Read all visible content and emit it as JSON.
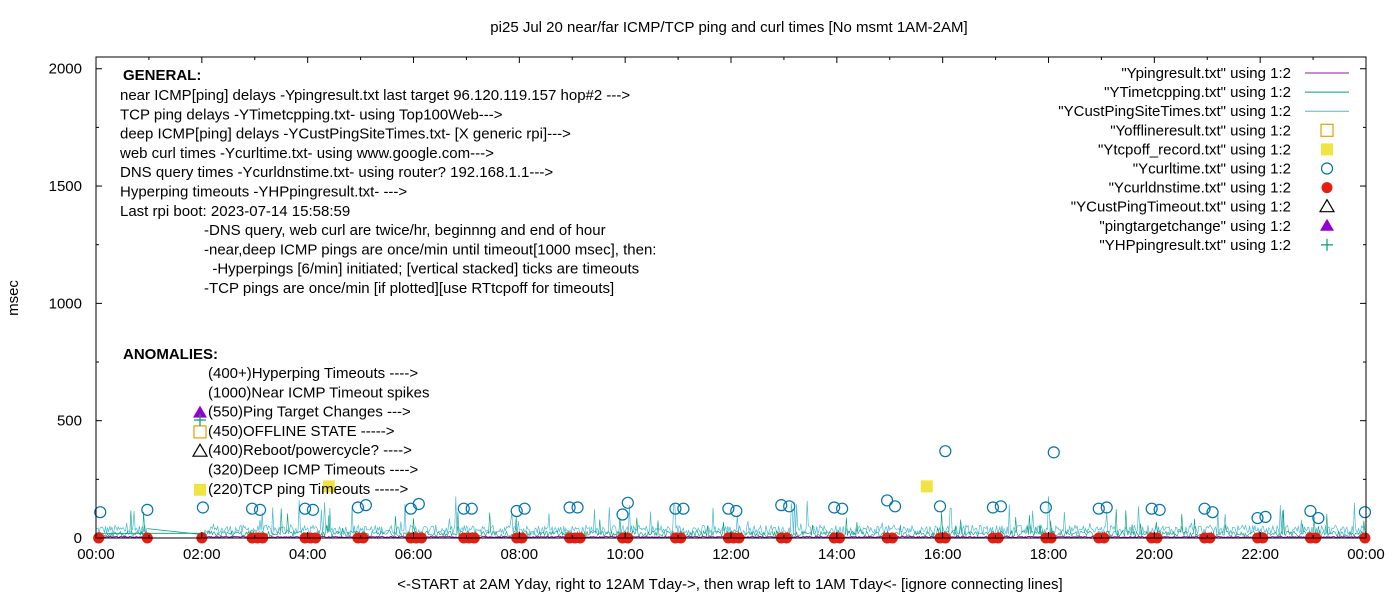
{
  "chart_data": {
    "type": "scatter",
    "title": "pi25 Jul 20  near/far ICMP/TCP ping and curl times [No msmt 1AM-2AM]",
    "xlabel": "<-START at 2AM Yday, right to 12AM Tday->, then wrap left to 1AM Tday<- [ignore connecting lines]",
    "ylabel": "msec",
    "xlim": [
      0,
      24
    ],
    "ylim": [
      0,
      2050
    ],
    "x_ticks": [
      "00:00",
      "02:00",
      "04:00",
      "06:00",
      "08:00",
      "10:00",
      "12:00",
      "14:00",
      "16:00",
      "18:00",
      "20:00",
      "22:00",
      "00:00"
    ],
    "y_ticks": [
      "0",
      "500",
      "1000",
      "1500",
      "2000"
    ],
    "y_tick_values": [
      0,
      500,
      1000,
      1500,
      2000
    ],
    "grid": false,
    "legend_position": "top-right",
    "legend": [
      {
        "label": "\"Ypingresult.txt\" using 1:2",
        "symbol": "line",
        "color": "#8b1aa8"
      },
      {
        "label": "\"YTimetcpping.txt\" using 1:2",
        "symbol": "line",
        "color": "#009e73"
      },
      {
        "label": "\"YCustPingSiteTimes.txt\" using 1:2",
        "symbol": "line",
        "color": "#4db8d4"
      },
      {
        "label": "\"Yofflineresult.txt\" using 1:2",
        "symbol": "open-square",
        "color": "#e69f00"
      },
      {
        "label": "\"Ytcpoff_record.txt\" using 1:2",
        "symbol": "filled-square",
        "color": "#f0e442"
      },
      {
        "label": "\"Ycurltime.txt\" using 1:2",
        "symbol": "open-circle",
        "color": "#0072b2"
      },
      {
        "label": "\"Ycurldnstime.txt\" using 1:2",
        "symbol": "filled-circle",
        "color": "#e51e10"
      },
      {
        "label": "\"YCustPingTimeout.txt\" using 1:2",
        "symbol": "open-triangle",
        "color": "#000000"
      },
      {
        "label": "\"pingtargetchange\" using 1:2",
        "symbol": "filled-triangle",
        "color": "#9400d3"
      },
      {
        "label": "\"YHPpingresult.txt\" using 1:2",
        "symbol": "plus",
        "color": "#009e73"
      }
    ],
    "general_notes": {
      "heading": "GENERAL:",
      "lines": [
        "near ICMP[ping] delays -Ypingresult.txt last target 96.120.119.157 hop#2 --->",
        "TCP ping delays -YTimetcpping.txt- using Top100Web--->",
        "deep ICMP[ping] delays -YCustPingSiteTimes.txt- [X generic rpi]--->",
        "web curl times -Ycurltime.txt- using www.google.com--->",
        "DNS query times -Ycurldnstime.txt- using router? 192.168.1.1--->",
        "Hyperping timeouts -YHPpingresult.txt- --->",
        "Last rpi boot: 2023-07-14 15:58:59"
      ],
      "indented_lines": [
        "-DNS query, web curl are twice/hr, beginnng and end of hour",
        "-near,deep ICMP pings are once/min until timeout[1000 msec], then:",
        "  -Hyperpings [6/min] initiated; [vertical stacked] ticks are timeouts",
        "-TCP pings are once/min [if plotted][use RTtcpoff for timeouts]"
      ]
    },
    "anomalies": {
      "heading": "ANOMALIES:",
      "items": [
        {
          "text": "(400+)Hyperping Timeouts ---->",
          "marker": "none"
        },
        {
          "text": "(1000)Near ICMP Timeout spikes",
          "marker": "none"
        },
        {
          "text": "(550)Ping Target Changes --->",
          "marker": "filled-triangle"
        },
        {
          "text": "(450)OFFLINE STATE ----->",
          "marker": "open-square"
        },
        {
          "text": "(400)Reboot/powercycle? ---->",
          "marker": "open-triangle"
        },
        {
          "text": "(320)Deep ICMP Timeouts ---->",
          "marker": "none"
        },
        {
          "text": "(220)TCP ping Timeouts ----->",
          "marker": "filled-square"
        }
      ]
    },
    "series": [
      {
        "name": "\"Ycurltime.txt\" using 1:2",
        "marker": "open-circle",
        "points": [
          [
            0.08,
            110
          ],
          [
            0.97,
            120
          ],
          [
            2.02,
            130
          ],
          [
            2.95,
            125
          ],
          [
            3.1,
            120
          ],
          [
            3.95,
            125
          ],
          [
            4.1,
            120
          ],
          [
            4.95,
            130
          ],
          [
            5.1,
            140
          ],
          [
            5.95,
            125
          ],
          [
            6.1,
            145
          ],
          [
            6.95,
            125
          ],
          [
            7.1,
            125
          ],
          [
            7.95,
            115
          ],
          [
            8.1,
            125
          ],
          [
            8.95,
            130
          ],
          [
            9.1,
            130
          ],
          [
            9.95,
            100
          ],
          [
            10.05,
            150
          ],
          [
            10.95,
            125
          ],
          [
            11.1,
            125
          ],
          [
            11.95,
            125
          ],
          [
            12.1,
            115
          ],
          [
            12.95,
            140
          ],
          [
            13.1,
            135
          ],
          [
            13.95,
            130
          ],
          [
            14.1,
            125
          ],
          [
            14.95,
            160
          ],
          [
            15.1,
            135
          ],
          [
            15.95,
            135
          ],
          [
            16.05,
            370
          ],
          [
            16.95,
            130
          ],
          [
            17.1,
            135
          ],
          [
            17.95,
            130
          ],
          [
            18.1,
            365
          ],
          [
            18.95,
            125
          ],
          [
            19.1,
            130
          ],
          [
            19.95,
            125
          ],
          [
            20.1,
            120
          ],
          [
            20.95,
            125
          ],
          [
            21.1,
            110
          ],
          [
            21.95,
            85
          ],
          [
            22.1,
            90
          ],
          [
            22.95,
            115
          ],
          [
            23.1,
            85
          ],
          [
            23.98,
            110
          ]
        ]
      },
      {
        "name": "\"Ycurldnstime.txt\" using 1:2",
        "marker": "filled-circle",
        "points": [
          [
            0.05,
            0
          ],
          [
            0.97,
            0
          ],
          [
            2.0,
            0
          ],
          [
            2.95,
            0
          ],
          [
            3.05,
            0
          ],
          [
            3.15,
            0
          ],
          [
            3.95,
            0
          ],
          [
            4.05,
            0
          ],
          [
            4.15,
            0
          ],
          [
            4.95,
            0
          ],
          [
            5.05,
            0
          ],
          [
            5.95,
            0
          ],
          [
            6.05,
            0
          ],
          [
            6.15,
            0
          ],
          [
            6.95,
            0
          ],
          [
            7.05,
            0
          ],
          [
            7.15,
            0
          ],
          [
            7.95,
            0
          ],
          [
            8.05,
            0
          ],
          [
            8.95,
            0
          ],
          [
            9.05,
            0
          ],
          [
            9.15,
            0
          ],
          [
            9.95,
            0
          ],
          [
            10.05,
            0
          ],
          [
            10.95,
            0
          ],
          [
            11.05,
            0
          ],
          [
            11.95,
            0
          ],
          [
            12.05,
            0
          ],
          [
            12.15,
            0
          ],
          [
            12.95,
            0
          ],
          [
            13.05,
            0
          ],
          [
            13.95,
            0
          ],
          [
            14.05,
            0
          ],
          [
            14.95,
            0
          ],
          [
            15.05,
            0
          ],
          [
            15.95,
            0
          ],
          [
            16.05,
            0
          ],
          [
            16.95,
            0
          ],
          [
            17.05,
            0
          ],
          [
            17.95,
            0
          ],
          [
            18.05,
            0
          ],
          [
            18.95,
            0
          ],
          [
            19.05,
            0
          ],
          [
            19.95,
            0
          ],
          [
            20.05,
            0
          ],
          [
            20.95,
            0
          ],
          [
            21.05,
            0
          ],
          [
            21.95,
            0
          ],
          [
            22.05,
            0
          ],
          [
            22.95,
            0
          ],
          [
            23.05,
            0
          ],
          [
            23.98,
            0
          ]
        ]
      },
      {
        "name": "\"Ytcpoff_record.txt\" using 1:2",
        "marker": "filled-square",
        "points": [
          [
            4.4,
            220
          ],
          [
            15.7,
            220
          ]
        ]
      }
    ]
  }
}
